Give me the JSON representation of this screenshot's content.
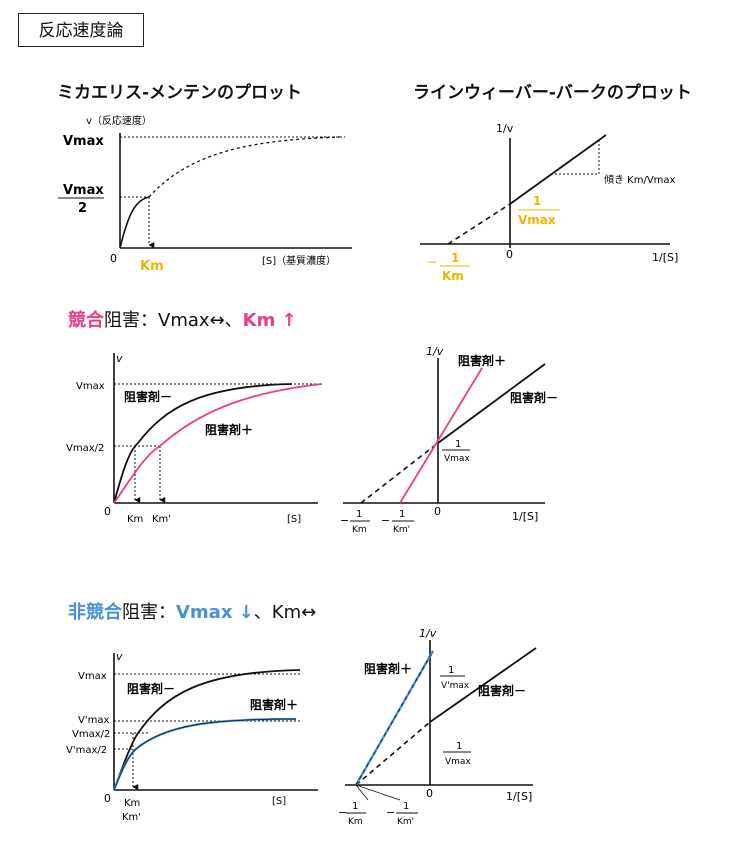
{
  "page_title": "反応速度論",
  "mm": {
    "title": "ミカエリス-メンテンのプロット",
    "y_label": "v（反応速度）",
    "x_label": "[S]（基質濃度）",
    "vmax": "Vmax",
    "half_num": "Vmax",
    "half_den": "2",
    "origin": "0",
    "km": "Km"
  },
  "lb": {
    "title": "ラインウィーバー-バークのプロット",
    "y_label": "1/v",
    "x_label": "1/[S]",
    "origin": "0",
    "slope": "傾き Km/Vmax",
    "yint_num": "1",
    "yint_den": "Vmax",
    "xint_num": "1",
    "xint_den": "Km",
    "xint_sign": "−"
  },
  "comp": {
    "heading_a": "競合",
    "heading_b": "阻害：Vmax↔、",
    "heading_c": "Km ↑",
    "mm": {
      "y_label": "v",
      "vmax": "Vmax",
      "half": "Vmax/2",
      "origin": "0",
      "km": "Km",
      "km2": "Km'",
      "x_label": "[S]",
      "minus": "阻害剤－",
      "plus": "阻害剤＋"
    },
    "lb": {
      "y_label": "1/v",
      "x_label": "1/[S]",
      "origin": "0",
      "plus": "阻害剤＋",
      "minus": "阻害剤－",
      "yint_num": "1",
      "yint_den": "Vmax",
      "x1_num": "1",
      "x1_den": "Km",
      "x2_num": "1",
      "x2_den": "Km'",
      "sign": "−"
    }
  },
  "noncomp": {
    "heading_a": "非競合",
    "heading_b": "阻害：",
    "heading_c": "Vmax ↓",
    "heading_d": "、Km↔",
    "mm": {
      "y_label": "v",
      "vmax": "Vmax",
      "vmax2": "V'max",
      "half": "Vmax/2",
      "half2": "V'max/2",
      "origin": "0",
      "km": "Km",
      "km2": "Km'",
      "x_label": "[S]",
      "minus": "阻害剤－",
      "plus": "阻害剤＋"
    },
    "lb": {
      "y_label": "1/v",
      "x_label": "1/[S]",
      "origin": "0",
      "plus": "阻害剤＋",
      "minus": "阻害剤－",
      "y1_num": "1",
      "y1_den": "V'max",
      "y2_num": "1",
      "y2_den": "Vmax",
      "x1_num": "1",
      "x1_den": "Km",
      "x2_num": "1",
      "x2_den": "Km'",
      "sign": "−"
    }
  },
  "colors": {
    "pink": "#e83e8c",
    "blue": "#4a90d9",
    "yellow": "#f0b400"
  }
}
